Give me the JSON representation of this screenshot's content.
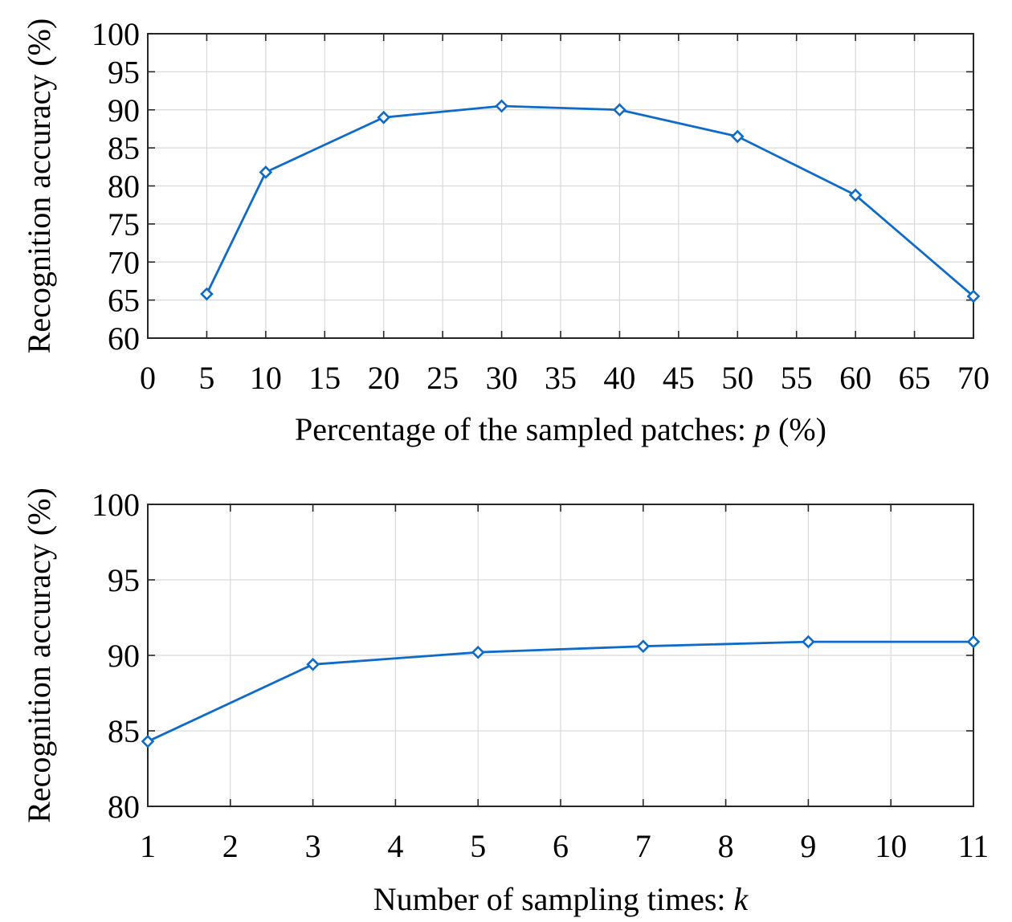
{
  "chart_data": [
    {
      "type": "line",
      "title": "",
      "xlabel": "Percentage of the sampled patches: p (%)",
      "xlabel_parts": [
        "Percentage of the sampled patches: ",
        "p",
        " (%)"
      ],
      "ylabel": "Recognition accuracy (%)",
      "xlim": [
        0,
        70
      ],
      "ylim": [
        60,
        100
      ],
      "xticks": [
        "0",
        "5",
        "10",
        "15",
        "20",
        "25",
        "30",
        "35",
        "40",
        "45",
        "50",
        "55",
        "60",
        "65",
        "70"
      ],
      "yticks": [
        "60",
        "65",
        "70",
        "75",
        "80",
        "85",
        "90",
        "95",
        "100"
      ],
      "grid": true,
      "series": [
        {
          "x": [
            5,
            10,
            20,
            30,
            40,
            50,
            60,
            70
          ],
          "y": [
            65.8,
            81.8,
            89.0,
            90.5,
            90.0,
            86.5,
            78.8,
            65.5
          ],
          "color": "#0e6bc9",
          "marker": "diamond"
        }
      ]
    },
    {
      "type": "line",
      "title": "",
      "xlabel": "Number of sampling times: k",
      "xlabel_parts": [
        "Number of sampling times: ",
        "k",
        ""
      ],
      "ylabel": "Recognition accuracy (%)",
      "xlim": [
        1,
        11
      ],
      "ylim": [
        80,
        100
      ],
      "xticks": [
        "1",
        "2",
        "3",
        "4",
        "5",
        "6",
        "7",
        "8",
        "9",
        "10",
        "11"
      ],
      "yticks": [
        "80",
        "85",
        "90",
        "95",
        "100"
      ],
      "grid": true,
      "series": [
        {
          "x": [
            1,
            3,
            5,
            7,
            9,
            11
          ],
          "y": [
            84.3,
            89.4,
            90.2,
            90.6,
            90.9,
            90.9
          ],
          "color": "#0e6bc9",
          "marker": "diamond"
        }
      ]
    }
  ]
}
